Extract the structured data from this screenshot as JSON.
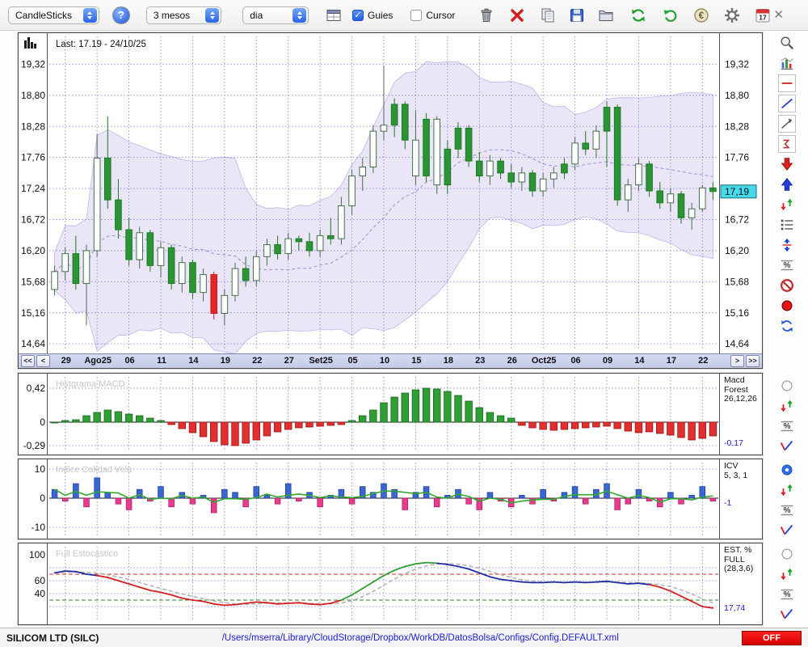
{
  "toolbar": {
    "chart_type_select": "CandleSticks",
    "period_select": "3 mesos",
    "interval_select": "dia",
    "guies_label": "Guies",
    "cursor_label": "Cursor",
    "calendar_day": "17"
  },
  "icons": {
    "help": "?",
    "check": "✓",
    "euro": "€",
    "percent": "%",
    "close": "✕"
  },
  "main_chart": {
    "last_label": "Last: 17.19 - 24/10/25",
    "price_badge": "17,19",
    "y_labels": [
      "19,32",
      "18,80",
      "18,28",
      "17,76",
      "17,24",
      "16,72",
      "16,20",
      "15,68",
      "15,16",
      "14,64"
    ],
    "x_ticks": [
      "29",
      "Ago25",
      "06",
      "11",
      "14",
      "19",
      "22",
      "27",
      "Set25",
      "05",
      "10",
      "15",
      "18",
      "23",
      "26",
      "Oct25",
      "06",
      "09",
      "14",
      "17",
      "22"
    ],
    "nav": {
      "first": "<<",
      "prev": "<",
      "next": ">",
      "last": ">>"
    }
  },
  "macd_panel": {
    "title": "Histgrama MACD",
    "y_labels": [
      "0,42",
      "0",
      "-0,29"
    ],
    "right_lines": [
      "Macd",
      "Forest",
      "26,12,26"
    ],
    "value": "-0,17"
  },
  "icv_panel": {
    "title": "Indice Calidad Vela",
    "y_labels": [
      "10",
      "0",
      "-10"
    ],
    "right_lines": [
      "ICV",
      "5, 3, 1"
    ],
    "value": "-1"
  },
  "stoch_panel": {
    "title": "Full Estocastico",
    "y_labels": [
      "100",
      "60",
      "40"
    ],
    "right_lines": [
      "EST. %",
      "FULL",
      "(28,3,6)"
    ],
    "value": "17,74"
  },
  "status_bar": {
    "symbol": "SILICOM LTD (SILC)",
    "config_path": "/Users/mserra/Library/CloudStorage/Dropbox/WorkDB/DatosBolsa/Configs/Config.DEFAULT.xml",
    "off_label": "OFF"
  },
  "right_toolbar": {
    "tools": [
      "zoom",
      "indicators",
      "horizontal-line",
      "diagonal-line",
      "trend-arrow",
      "sigma",
      "arrow-down",
      "arrow-up",
      "up-down-arrows",
      "list",
      "vertical-scale",
      "percent",
      "prohibit",
      "record",
      "refresh-cycle"
    ],
    "panel_tools": [
      "radio",
      "up-down-arrows",
      "percent",
      "signal-curve"
    ]
  },
  "chart_data": {
    "price": {
      "type": "candlestick",
      "title": "SILICOM LTD (SILC) daily candlesticks with Bollinger band",
      "ylim": [
        14.48,
        19.84
      ],
      "y_grid": [
        19.32,
        18.8,
        18.28,
        17.76,
        17.24,
        16.72,
        16.2,
        15.68,
        15.16,
        14.64
      ],
      "tick_indices": [
        1,
        4,
        7,
        10,
        13,
        16,
        19,
        22,
        25,
        28,
        31,
        34,
        37,
        40,
        43,
        46,
        49,
        52,
        55,
        58,
        61
      ],
      "last_price": 17.19,
      "last_date": "24/10/25",
      "band": {
        "window": 14,
        "mult": 2
      },
      "candles": [
        [
          15.55,
          15.95,
          15.45,
          15.85,
          "w"
        ],
        [
          15.85,
          16.25,
          15.7,
          16.15,
          "w"
        ],
        [
          16.15,
          16.45,
          15.55,
          15.65,
          "g"
        ],
        [
          15.65,
          16.3,
          14.95,
          16.2,
          "w"
        ],
        [
          16.2,
          18.15,
          16.1,
          17.75,
          "w"
        ],
        [
          17.75,
          18.45,
          16.9,
          17.05,
          "g"
        ],
        [
          17.05,
          17.4,
          16.4,
          16.55,
          "g"
        ],
        [
          16.55,
          16.75,
          15.95,
          16.05,
          "g"
        ],
        [
          16.05,
          16.6,
          15.9,
          16.5,
          "w"
        ],
        [
          16.5,
          16.55,
          15.85,
          15.95,
          "g"
        ],
        [
          15.95,
          16.35,
          15.75,
          16.25,
          "w"
        ],
        [
          16.25,
          16.3,
          15.55,
          15.65,
          "g"
        ],
        [
          15.65,
          16.1,
          15.5,
          16.0,
          "w"
        ],
        [
          16.0,
          16.05,
          15.4,
          15.5,
          "g"
        ],
        [
          15.5,
          15.9,
          15.35,
          15.8,
          "w"
        ],
        [
          15.8,
          15.85,
          15.05,
          15.15,
          "r"
        ],
        [
          15.15,
          15.55,
          14.95,
          15.45,
          "w"
        ],
        [
          15.45,
          16.0,
          15.35,
          15.9,
          "w"
        ],
        [
          15.9,
          16.1,
          15.6,
          15.7,
          "g"
        ],
        [
          15.7,
          16.2,
          15.6,
          16.1,
          "w"
        ],
        [
          16.1,
          16.4,
          15.95,
          16.3,
          "w"
        ],
        [
          16.3,
          16.45,
          16.05,
          16.15,
          "g"
        ],
        [
          16.15,
          16.5,
          16.05,
          16.4,
          "w"
        ],
        [
          16.4,
          16.45,
          16.2,
          16.35,
          "g"
        ],
        [
          16.35,
          16.5,
          16.1,
          16.2,
          "g"
        ],
        [
          16.2,
          16.55,
          16.1,
          16.45,
          "w"
        ],
        [
          16.45,
          16.75,
          16.3,
          16.4,
          "g"
        ],
        [
          16.4,
          17.1,
          16.3,
          16.95,
          "w"
        ],
        [
          16.95,
          17.55,
          16.8,
          17.45,
          "w"
        ],
        [
          17.45,
          17.75,
          17.2,
          17.6,
          "w"
        ],
        [
          17.6,
          18.3,
          17.5,
          18.2,
          "w"
        ],
        [
          18.2,
          19.3,
          18.05,
          18.3,
          "w"
        ],
        [
          18.3,
          18.75,
          18.1,
          18.65,
          "g"
        ],
        [
          18.65,
          18.7,
          17.9,
          18.05,
          "g"
        ],
        [
          18.05,
          18.55,
          17.3,
          17.45,
          "w"
        ],
        [
          17.45,
          18.5,
          17.35,
          18.4,
          "g"
        ],
        [
          18.4,
          18.45,
          17.15,
          17.3,
          "w"
        ],
        [
          17.3,
          18.05,
          17.15,
          17.9,
          "g"
        ],
        [
          17.9,
          18.35,
          17.75,
          18.25,
          "g"
        ],
        [
          18.25,
          18.3,
          17.6,
          17.7,
          "g"
        ],
        [
          17.7,
          17.85,
          17.35,
          17.45,
          "g"
        ],
        [
          17.45,
          17.8,
          17.3,
          17.7,
          "w"
        ],
        [
          17.7,
          17.75,
          17.4,
          17.5,
          "g"
        ],
        [
          17.5,
          17.65,
          17.25,
          17.35,
          "g"
        ],
        [
          17.35,
          17.6,
          17.2,
          17.5,
          "w"
        ],
        [
          17.5,
          17.55,
          17.1,
          17.2,
          "g"
        ],
        [
          17.2,
          17.5,
          17.1,
          17.4,
          "w"
        ],
        [
          17.4,
          17.6,
          17.25,
          17.5,
          "w"
        ],
        [
          17.5,
          17.75,
          17.4,
          17.65,
          "g"
        ],
        [
          17.65,
          18.1,
          17.55,
          18.0,
          "w"
        ],
        [
          18.0,
          18.2,
          17.8,
          17.9,
          "g"
        ],
        [
          17.9,
          18.3,
          17.75,
          18.2,
          "w"
        ],
        [
          18.2,
          18.7,
          17.6,
          18.6,
          "g"
        ],
        [
          18.6,
          18.65,
          16.95,
          17.05,
          "g"
        ],
        [
          17.05,
          17.4,
          16.85,
          17.3,
          "w"
        ],
        [
          17.3,
          17.75,
          17.2,
          17.65,
          "w"
        ],
        [
          17.65,
          17.7,
          17.1,
          17.2,
          "g"
        ],
        [
          17.2,
          17.35,
          16.9,
          17.0,
          "g"
        ],
        [
          17.0,
          17.25,
          16.85,
          17.15,
          "w"
        ],
        [
          17.15,
          17.2,
          16.65,
          16.75,
          "g"
        ],
        [
          16.75,
          17.0,
          16.55,
          16.9,
          "w"
        ],
        [
          16.9,
          17.3,
          16.85,
          17.25,
          "w"
        ],
        [
          17.25,
          17.35,
          17.05,
          17.19,
          "g"
        ]
      ]
    },
    "macd": {
      "type": "bar",
      "grid": [
        0.42,
        0,
        -0.29
      ],
      "last_value": -0.17,
      "values": [
        0.0,
        0.02,
        0.03,
        0.08,
        0.12,
        0.15,
        0.13,
        0.1,
        0.08,
        0.05,
        0.02,
        -0.03,
        -0.08,
        -0.13,
        -0.18,
        -0.24,
        -0.28,
        -0.29,
        -0.26,
        -0.22,
        -0.17,
        -0.12,
        -0.09,
        -0.07,
        -0.06,
        -0.05,
        -0.04,
        -0.03,
        0.02,
        0.08,
        0.15,
        0.24,
        0.31,
        0.36,
        0.4,
        0.42,
        0.41,
        0.38,
        0.33,
        0.26,
        0.18,
        0.12,
        0.08,
        0.05,
        -0.04,
        -0.07,
        -0.09,
        -0.1,
        -0.09,
        -0.08,
        -0.07,
        -0.06,
        -0.05,
        -0.08,
        -0.11,
        -0.13,
        -0.12,
        -0.14,
        -0.16,
        -0.19,
        -0.22,
        -0.2,
        -0.17
      ]
    },
    "icv": {
      "type": "bar+line",
      "grid": [
        10,
        0,
        -10
      ],
      "line_window": 5,
      "last_value": -1,
      "values": [
        3,
        -1,
        5,
        -3,
        7,
        2,
        -2,
        -4,
        3,
        -1,
        4,
        -3,
        2,
        -2,
        1,
        -5,
        3,
        2,
        -3,
        4,
        1,
        -2,
        5,
        -1,
        2,
        -3,
        1,
        3,
        -2,
        4,
        2,
        5,
        3,
        -4,
        2,
        4,
        -3,
        1,
        3,
        -2,
        -4,
        2,
        -1,
        -3,
        1,
        -2,
        3,
        -1,
        2,
        4,
        -2,
        3,
        5,
        -4,
        -2,
        3,
        -1,
        -3,
        2,
        -2,
        1,
        4,
        -1
      ]
    },
    "stoch": {
      "type": "line",
      "grid": [
        100,
        60,
        40
      ],
      "levels": {
        "upper": 70,
        "lower": 30
      },
      "signal_window": 4,
      "last_value": 17.74,
      "values": [
        72,
        75,
        74,
        70,
        68,
        65,
        60,
        55,
        50,
        45,
        42,
        38,
        33,
        30,
        28,
        24,
        22,
        23,
        25,
        27,
        26,
        24,
        25,
        26,
        24,
        23,
        25,
        30,
        38,
        48,
        58,
        68,
        76,
        82,
        86,
        88,
        87,
        85,
        82,
        78,
        72,
        66,
        62,
        60,
        58,
        57,
        57,
        58,
        57,
        58,
        57,
        58,
        59,
        57,
        55,
        56,
        54,
        50,
        44,
        36,
        28,
        20,
        17.74
      ],
      "colors": [
        "b",
        "b",
        "b",
        "b",
        "b",
        "r",
        "r",
        "r",
        "r",
        "r",
        "r",
        "r",
        "r",
        "r",
        "r",
        "r",
        "r",
        "r",
        "r",
        "r",
        "r",
        "r",
        "r",
        "r",
        "r",
        "r",
        "r",
        "r",
        "g",
        "g",
        "g",
        "g",
        "g",
        "g",
        "g",
        "g",
        "g",
        "b",
        "b",
        "b",
        "b",
        "b",
        "b",
        "b",
        "b",
        "b",
        "b",
        "b",
        "b",
        "b",
        "b",
        "b",
        "b",
        "b",
        "b",
        "b",
        "b",
        "r",
        "r",
        "r",
        "r",
        "r",
        "r"
      ]
    }
  }
}
